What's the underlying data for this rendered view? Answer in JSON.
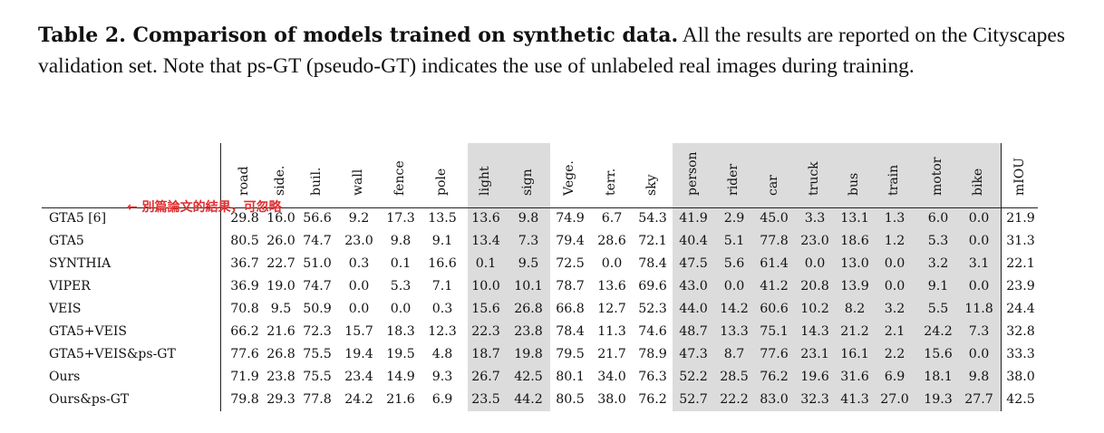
{
  "caption": {
    "label": "Table 2. Comparison of models trained on synthetic data.",
    "text": " All the results are reported on the Cityscapes validation set. Note that ps-GT (pseudo-GT) indicates the use of unlabeled real images during training."
  },
  "annotation": "← 別篇論文的結果，可忽略",
  "columns": [
    "road",
    "side.",
    "buil.",
    "wall",
    "fence",
    "pole",
    "light",
    "sign",
    "Vege.",
    "terr.",
    "sky",
    "person",
    "rider",
    "car",
    "truck",
    "bus",
    "train",
    "motor",
    "bike",
    "mIOU"
  ],
  "rows": [
    {
      "name": "GTA5 [6]",
      "values": [
        "29.8",
        "16.0",
        "56.6",
        "9.2",
        "17.3",
        "13.5",
        "13.6",
        "9.8",
        "74.9",
        "6.7",
        "54.3",
        "41.9",
        "2.9",
        "45.0",
        "3.3",
        "13.1",
        "1.3",
        "6.0",
        "0.0",
        "21.9"
      ]
    },
    {
      "name": "GTA5",
      "values": [
        "80.5",
        "26.0",
        "74.7",
        "23.0",
        "9.8",
        "9.1",
        "13.4",
        "7.3",
        "79.4",
        "28.6",
        "72.1",
        "40.4",
        "5.1",
        "77.8",
        "23.0",
        "18.6",
        "1.2",
        "5.3",
        "0.0",
        "31.3"
      ]
    },
    {
      "name": "SYNTHIA",
      "values": [
        "36.7",
        "22.7",
        "51.0",
        "0.3",
        "0.1",
        "16.6",
        "0.1",
        "9.5",
        "72.5",
        "0.0",
        "78.4",
        "47.5",
        "5.6",
        "61.4",
        "0.0",
        "13.0",
        "0.0",
        "3.2",
        "3.1",
        "22.1"
      ]
    },
    {
      "name": "VIPER",
      "values": [
        "36.9",
        "19.0",
        "74.7",
        "0.0",
        "5.3",
        "7.1",
        "10.0",
        "10.1",
        "78.7",
        "13.6",
        "69.6",
        "43.0",
        "0.0",
        "41.2",
        "20.8",
        "13.9",
        "0.0",
        "9.1",
        "0.0",
        "23.9"
      ]
    },
    {
      "name": "VEIS",
      "values": [
        "70.8",
        "9.5",
        "50.9",
        "0.0",
        "0.0",
        "0.3",
        "15.6",
        "26.8",
        "66.8",
        "12.7",
        "52.3",
        "44.0",
        "14.2",
        "60.6",
        "10.2",
        "8.2",
        "3.2",
        "5.5",
        "11.8",
        "24.4"
      ]
    },
    {
      "name": "GTA5+VEIS",
      "values": [
        "66.2",
        "21.6",
        "72.3",
        "15.7",
        "18.3",
        "12.3",
        "22.3",
        "23.8",
        "78.4",
        "11.3",
        "74.6",
        "48.7",
        "13.3",
        "75.1",
        "14.3",
        "21.2",
        "2.1",
        "24.2",
        "7.3",
        "32.8"
      ]
    },
    {
      "name": "GTA5+VEIS&ps-GT",
      "values": [
        "77.6",
        "26.8",
        "75.5",
        "19.4",
        "19.5",
        "4.8",
        "18.7",
        "19.8",
        "79.5",
        "21.7",
        "78.9",
        "47.3",
        "8.7",
        "77.6",
        "23.1",
        "16.1",
        "2.2",
        "15.6",
        "0.0",
        "33.3"
      ]
    },
    {
      "name": "Ours",
      "values": [
        "71.9",
        "23.8",
        "75.5",
        "23.4",
        "14.9",
        "9.3",
        "26.7",
        "42.5",
        "80.1",
        "34.0",
        "76.3",
        "52.2",
        "28.5",
        "76.2",
        "19.6",
        "31.6",
        "6.9",
        "18.1",
        "9.8",
        "38.0"
      ]
    },
    {
      "name": "Ours&ps-GT",
      "values": [
        "79.8",
        "29.3",
        "77.8",
        "24.2",
        "21.6",
        "6.9",
        "23.5",
        "44.2",
        "80.5",
        "38.0",
        "76.2",
        "52.7",
        "22.2",
        "83.0",
        "32.3",
        "41.3",
        "27.0",
        "19.3",
        "27.7",
        "42.5"
      ]
    }
  ]
}
